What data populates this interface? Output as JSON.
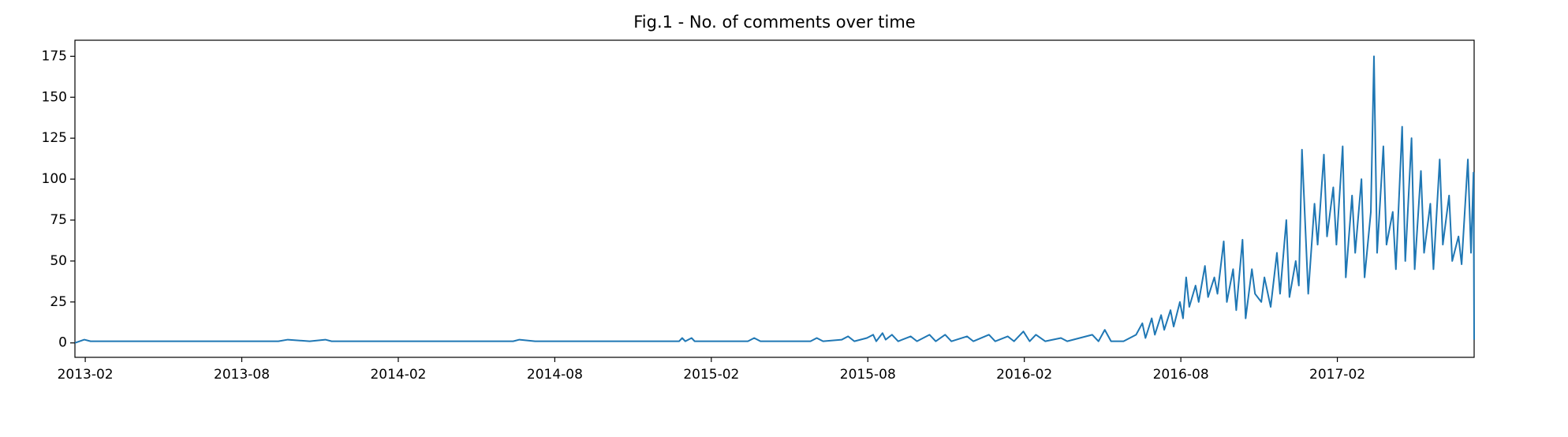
{
  "chart_data": {
    "type": "line",
    "title": "Fig.1 - No. of comments over time",
    "x": [
      2013.05,
      2013.08,
      2013.1,
      2013.7,
      2013.73,
      2013.8,
      2013.85,
      2013.87,
      2014.45,
      2014.47,
      2014.52,
      2014.98,
      2014.99,
      2015.0,
      2015.02,
      2015.03,
      2015.2,
      2015.22,
      2015.24,
      2015.4,
      2015.42,
      2015.44,
      2015.5,
      2015.52,
      2015.54,
      2015.58,
      2015.6,
      2015.61,
      2015.63,
      2015.64,
      2015.66,
      2015.68,
      2015.72,
      2015.74,
      2015.78,
      2015.8,
      2015.83,
      2015.85,
      2015.9,
      2015.92,
      2015.97,
      2015.99,
      2016.03,
      2016.05,
      2016.08,
      2016.1,
      2016.12,
      2016.15,
      2016.2,
      2016.22,
      2016.3,
      2016.32,
      2016.34,
      2016.36,
      2016.4,
      2016.44,
      2016.46,
      2016.47,
      2016.49,
      2016.5,
      2016.52,
      2016.53,
      2016.55,
      2016.56,
      2016.58,
      2016.59,
      2016.6,
      2016.61,
      2016.63,
      2016.64,
      2016.66,
      2016.67,
      2016.69,
      2016.7,
      2016.72,
      2016.73,
      2016.75,
      2016.76,
      2016.78,
      2016.79,
      2016.81,
      2016.82,
      2016.84,
      2016.85,
      2016.87,
      2016.89,
      2016.9,
      2016.92,
      2016.93,
      2016.95,
      2016.96,
      2016.97,
      2016.99,
      2017.01,
      2017.02,
      2017.04,
      2017.05,
      2017.07,
      2017.08,
      2017.1,
      2017.11,
      2017.13,
      2017.14,
      2017.16,
      2017.17,
      2017.19,
      2017.2,
      2017.21,
      2017.23,
      2017.24,
      2017.26,
      2017.27,
      2017.29,
      2017.3,
      2017.32,
      2017.33,
      2017.35,
      2017.36,
      2017.38,
      2017.39,
      2017.41,
      2017.42,
      2017.44,
      2017.45,
      2017.47,
      2017.48,
      2017.5,
      2017.51,
      2017.518,
      2017.52
    ],
    "series": [
      {
        "color": "#1f77b4",
        "values": [
          0,
          2,
          1,
          1,
          2,
          1,
          2,
          1,
          1,
          2,
          1,
          1,
          3,
          1,
          3,
          1,
          1,
          3,
          1,
          1,
          3,
          1,
          2,
          4,
          1,
          3,
          5,
          1,
          6,
          2,
          5,
          1,
          4,
          1,
          5,
          1,
          5,
          1,
          4,
          1,
          5,
          1,
          4,
          1,
          7,
          1,
          5,
          1,
          3,
          1,
          5,
          1,
          8,
          1,
          1,
          5,
          12,
          3,
          15,
          5,
          17,
          8,
          20,
          10,
          25,
          15,
          40,
          22,
          35,
          25,
          47,
          28,
          40,
          30,
          62,
          25,
          45,
          20,
          63,
          15,
          45,
          30,
          25,
          40,
          22,
          55,
          30,
          75,
          28,
          50,
          35,
          118,
          30,
          85,
          60,
          115,
          65,
          95,
          60,
          120,
          40,
          90,
          55,
          100,
          40,
          80,
          175,
          55,
          120,
          60,
          80,
          45,
          132,
          50,
          125,
          45,
          105,
          55,
          85,
          45,
          112,
          60,
          90,
          50,
          65,
          48,
          112,
          55,
          104,
          2
        ]
      }
    ],
    "xlim": [
      2013.05,
      2017.52
    ],
    "xticks": [
      {
        "value": 2013.083,
        "label": "2013-02"
      },
      {
        "value": 2013.583,
        "label": "2013-08"
      },
      {
        "value": 2014.083,
        "label": "2014-02"
      },
      {
        "value": 2014.583,
        "label": "2014-08"
      },
      {
        "value": 2015.083,
        "label": "2015-02"
      },
      {
        "value": 2015.583,
        "label": "2015-08"
      },
      {
        "value": 2016.083,
        "label": "2016-02"
      },
      {
        "value": 2016.583,
        "label": "2016-08"
      },
      {
        "value": 2017.083,
        "label": "2017-02"
      }
    ],
    "ylim": [
      -8.8,
      184.8
    ],
    "yticks": [
      0,
      25,
      50,
      75,
      100,
      125,
      150,
      175
    ]
  }
}
